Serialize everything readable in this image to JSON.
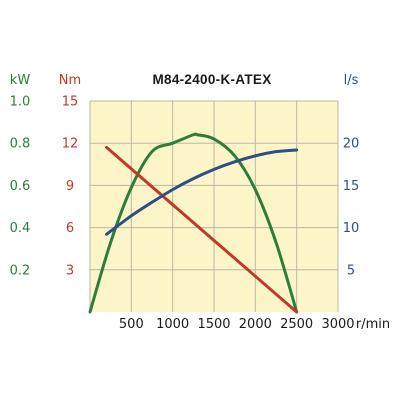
{
  "chart_data": {
    "type": "line",
    "title": "M84-2400-K-ATEX",
    "xlabel": "r/min",
    "xlim": [
      0,
      3000
    ],
    "x_ticks": [
      "500",
      "1000",
      "1500",
      "2000",
      "2500",
      "3000"
    ],
    "x_tick_values": [
      500,
      1000,
      1500,
      2000,
      2500,
      3000
    ],
    "grid": true,
    "plot_background": "#fbf5c8",
    "axes": [
      {
        "id": "power",
        "unit": "kW",
        "color": "#2e7d3a",
        "range": [
          0,
          1.0
        ],
        "ticks": [
          "0.2",
          "0.4",
          "0.6",
          "0.8",
          "1.0"
        ],
        "tick_values": [
          0.2,
          0.4,
          0.6,
          0.8,
          1.0
        ]
      },
      {
        "id": "torque",
        "unit": "Nm",
        "color": "#c0392b",
        "range": [
          0,
          15
        ],
        "ticks": [
          "3",
          "6",
          "9",
          "12",
          "15"
        ],
        "tick_values": [
          3,
          6,
          9,
          12,
          15
        ]
      },
      {
        "id": "flow",
        "unit": "l/s",
        "color": "#2e4f86",
        "range": [
          0,
          25
        ],
        "ticks": [
          "5",
          "10",
          "15",
          "20"
        ],
        "tick_values": [
          5,
          10,
          15,
          20
        ]
      }
    ],
    "series": [
      {
        "axis": "power",
        "color": "#2e7d3a",
        "x": [
          0,
          250,
          500,
          750,
          1000,
          1250,
          1300,
          1500,
          1750,
          2000,
          2250,
          2500
        ],
        "y": [
          0,
          0.33,
          0.59,
          0.76,
          0.8,
          0.84,
          0.84,
          0.82,
          0.74,
          0.58,
          0.33,
          0
        ]
      },
      {
        "axis": "torque",
        "color": "#c0392b",
        "x": [
          200,
          2500
        ],
        "y": [
          11.7,
          0
        ]
      },
      {
        "axis": "flow",
        "color": "#2e4f86",
        "x": [
          200,
          500,
          750,
          1000,
          1250,
          1500,
          1750,
          2000,
          2250,
          2500
        ],
        "y": [
          9.2,
          11.4,
          13.0,
          14.5,
          15.8,
          16.9,
          17.8,
          18.5,
          19.0,
          19.2
        ]
      }
    ]
  }
}
